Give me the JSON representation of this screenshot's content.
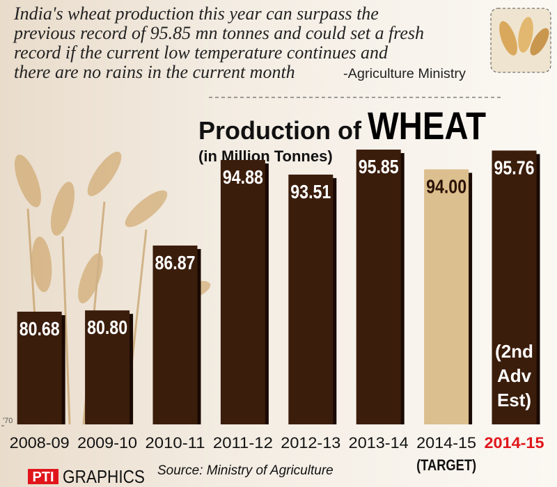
{
  "chart_data": {
    "type": "bar",
    "quote_lines": [
      "India's wheat production this year can surpass the",
      "previous record of  95.85 mn tonnes and could set a fresh",
      "record  if  the current low temperature continues and",
      "there are no rains in the current month"
    ],
    "quote_attribution": "-Agriculture Ministry",
    "title": "Production of",
    "title_emphasis": "WHEAT",
    "subtitle": "(in Million Tonnes)",
    "categories": [
      "2008-09",
      "2009-10",
      "2010-11",
      "2011-12",
      "2012-13",
      "2013-14",
      "2014-15",
      "2014-15"
    ],
    "values": [
      80.68,
      80.8,
      86.87,
      94.88,
      93.51,
      95.85,
      94.0,
      95.76
    ],
    "value_labels": [
      "80.68",
      "80.80",
      "86.87",
      "94.88",
      "93.51",
      "95.85",
      "94.00",
      "95.76"
    ],
    "colors": [
      "#3b1d0c",
      "#3b1d0c",
      "#3b1d0c",
      "#3b1d0c",
      "#3b1d0c",
      "#3b1d0c",
      "#dcbf8e",
      "#3b1d0c"
    ],
    "label_colors": [
      "#111111",
      "#111111",
      "#111111",
      "#111111",
      "#111111",
      "#111111",
      "#111111",
      "#e0161b"
    ],
    "target_note": "(TARGET)",
    "estimate_note": [
      "(2nd",
      "Adv",
      "Est)"
    ],
    "ylim": [
      70,
      98
    ],
    "yticks": [
      {
        "value": 70,
        "label": "'70"
      }
    ],
    "source": "Source: Ministry of Agriculture",
    "logo": "PTI",
    "logo_text": "GRAPHICS"
  }
}
